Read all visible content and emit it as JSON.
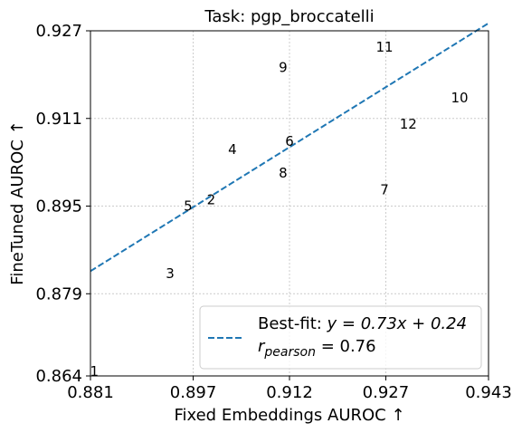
{
  "chart_data": {
    "type": "scatter",
    "title": "Task: pgp_broccatelli",
    "xlabel": "Fixed Embeddings AUROC ↑",
    "ylabel": "FineTuned AUROC ↑",
    "xlim": [
      0.881,
      0.943
    ],
    "ylim": [
      0.864,
      0.927
    ],
    "xticks": [
      0.881,
      0.897,
      0.912,
      0.927,
      0.943
    ],
    "xtick_labels": [
      "0.881",
      "0.897",
      "0.912",
      "0.927",
      "0.943"
    ],
    "yticks": [
      0.864,
      0.879,
      0.895,
      0.911,
      0.927
    ],
    "ytick_labels": [
      "0.864",
      "0.879",
      "0.895",
      "0.911",
      "0.927"
    ],
    "grid": true,
    "points": [
      {
        "label": "1",
        "x": 0.8816,
        "y": 0.8648
      },
      {
        "label": "2",
        "x": 0.8998,
        "y": 0.8962
      },
      {
        "label": "3",
        "x": 0.8934,
        "y": 0.8827
      },
      {
        "label": "4",
        "x": 0.9031,
        "y": 0.9053
      },
      {
        "label": "5",
        "x": 0.8962,
        "y": 0.895
      },
      {
        "label": "6",
        "x": 0.912,
        "y": 0.9068
      },
      {
        "label": "7",
        "x": 0.9268,
        "y": 0.898
      },
      {
        "label": "8",
        "x": 0.911,
        "y": 0.901
      },
      {
        "label": "9",
        "x": 0.911,
        "y": 0.9203
      },
      {
        "label": "10",
        "x": 0.9385,
        "y": 0.9148
      },
      {
        "label": "11",
        "x": 0.9268,
        "y": 0.924
      },
      {
        "label": "12",
        "x": 0.9305,
        "y": 0.91
      }
    ],
    "fit_line": {
      "slope": 0.73,
      "intercept": 0.24,
      "color": "#1f77b4"
    },
    "legend": {
      "placement": "lower-right",
      "fit_prefix": "Best-fit: ",
      "fit_equation": "y = 0.73x + 0.24",
      "r_symbol": "r",
      "r_subscript": "pearson",
      "r_value": " = 0.76"
    }
  }
}
